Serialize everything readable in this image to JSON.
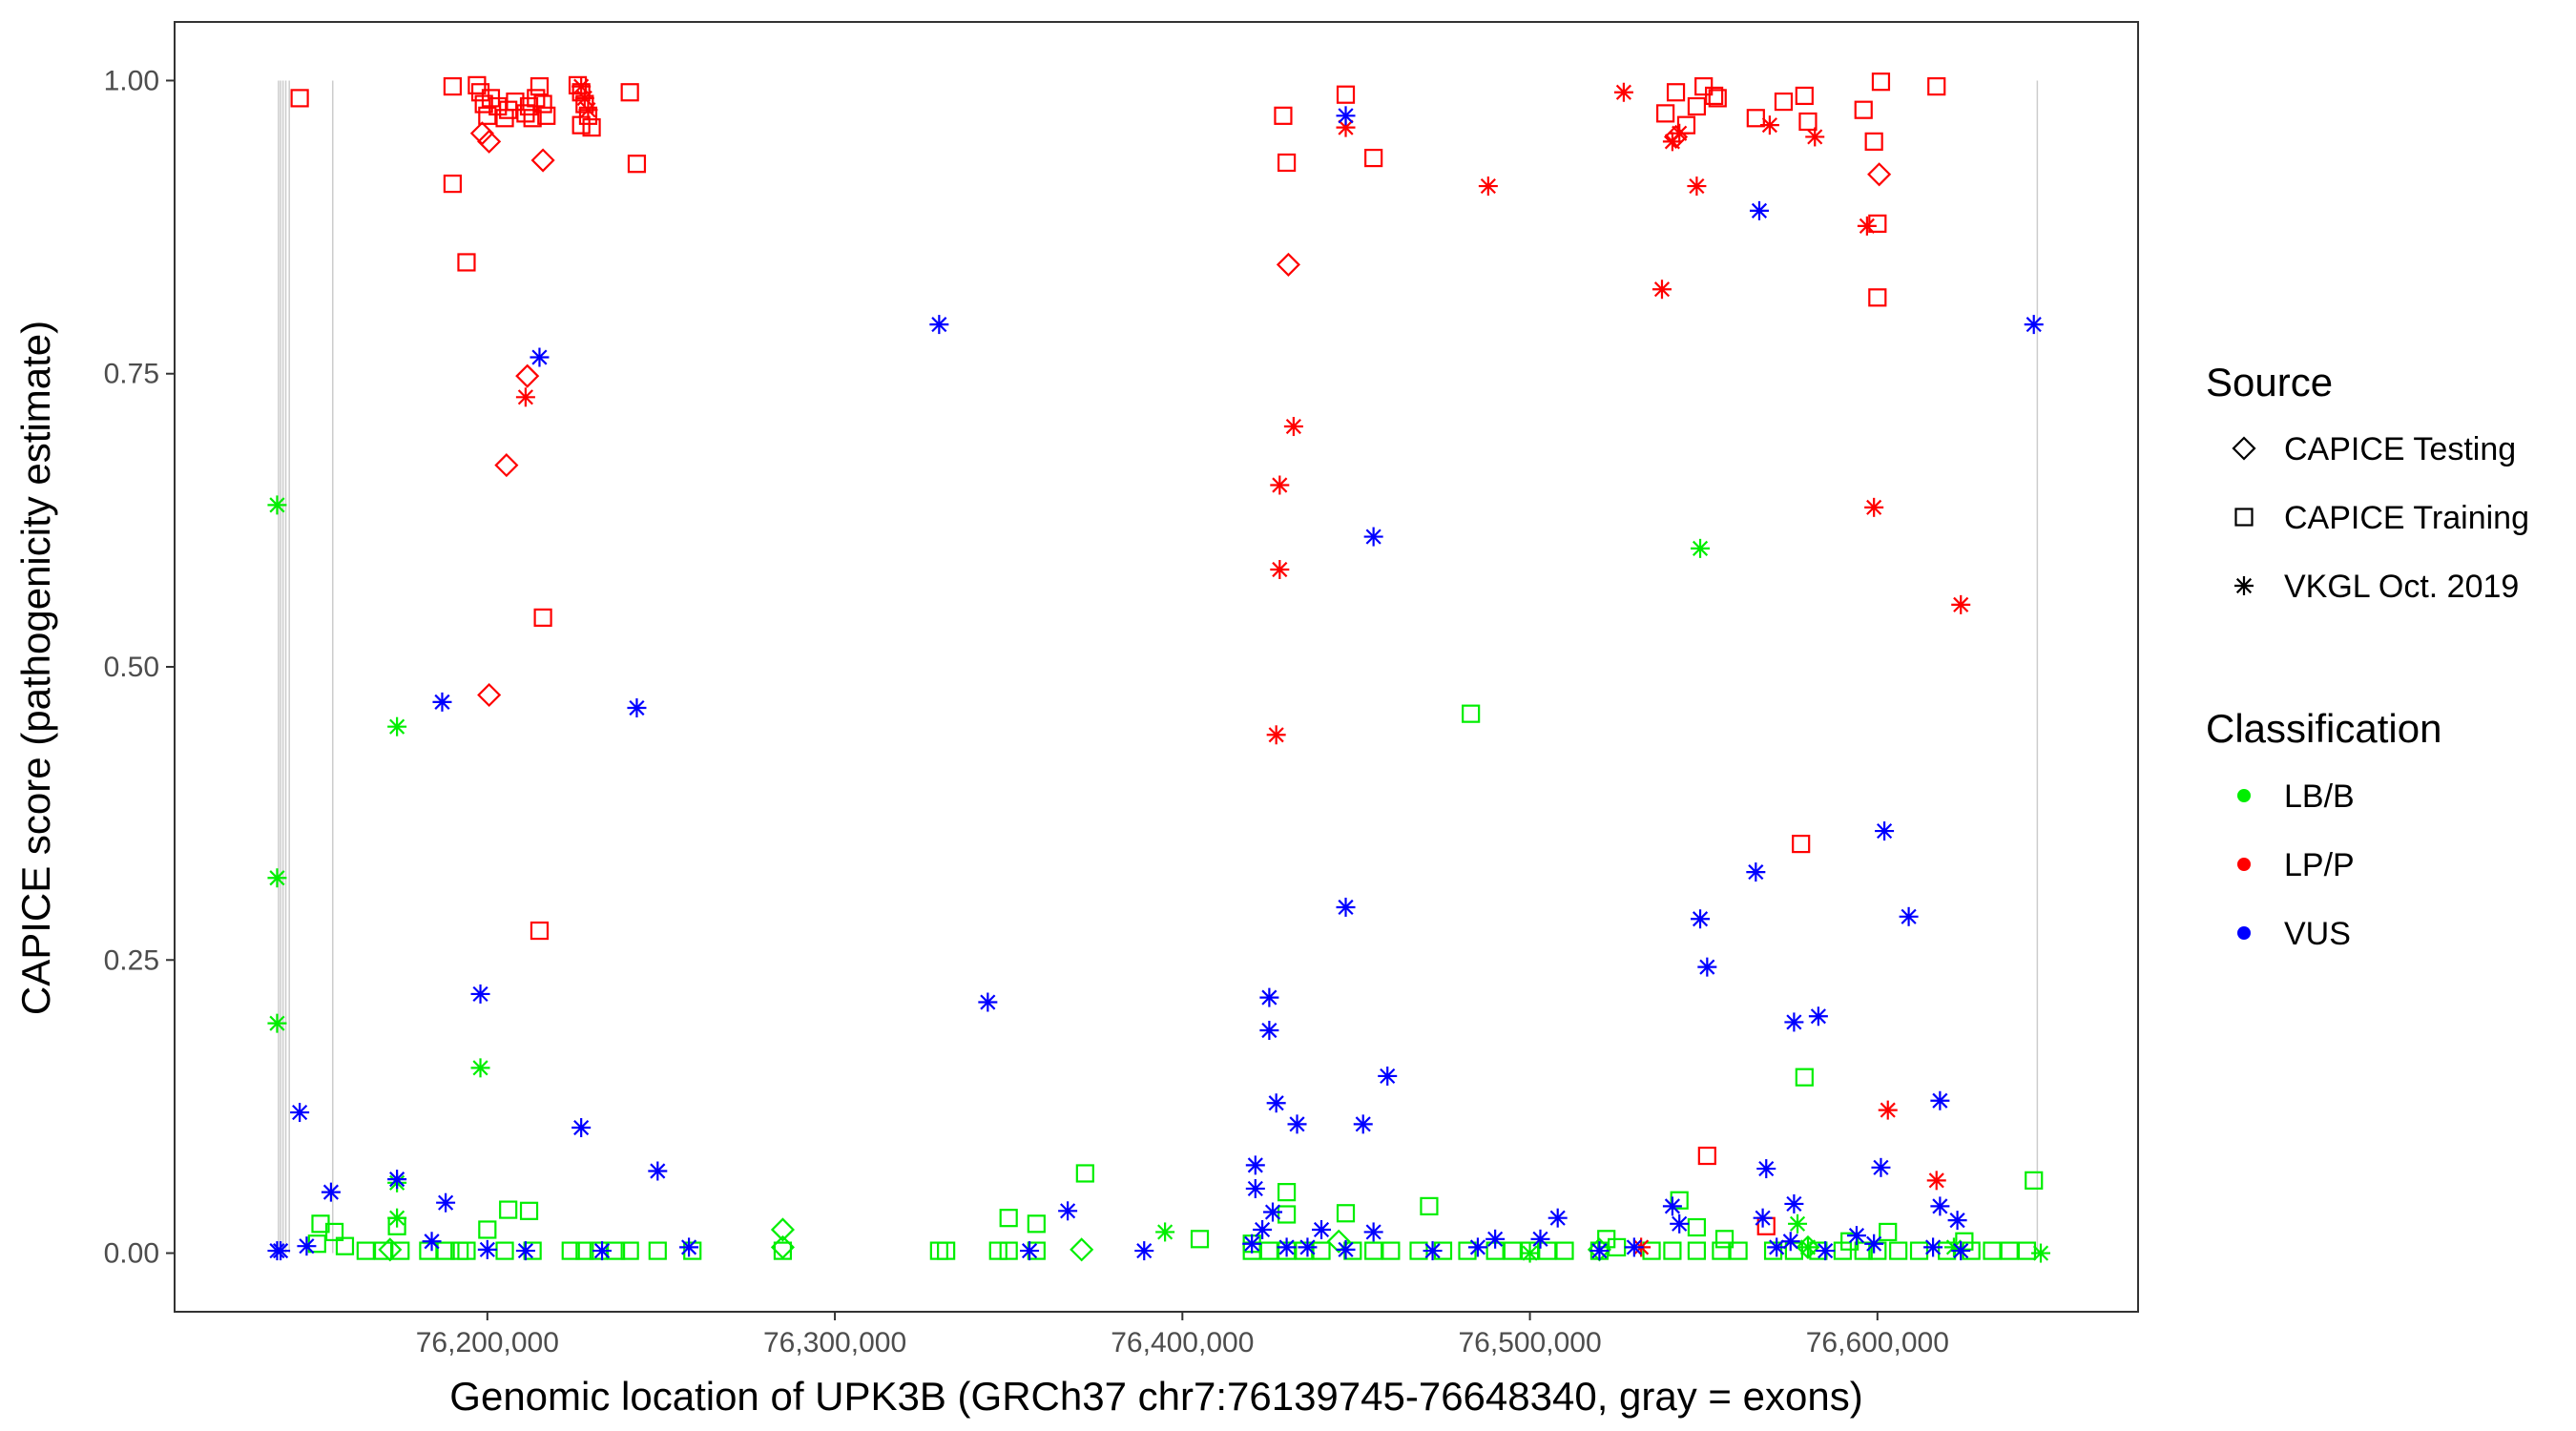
{
  "chart_data": {
    "type": "scatter",
    "title": "",
    "xlabel": "Genomic location of UPK3B (GRCh37 chr7:76139745-76648340, gray = exons)",
    "ylabel": "CAPICE score (pathogenicity estimate)",
    "xlim": [
      76110000,
      76675000
    ],
    "ylim": [
      -0.05,
      1.05
    ],
    "x_ticks": [
      76200000,
      76300000,
      76400000,
      76500000,
      76600000
    ],
    "x_tick_labels": [
      "76,200,000",
      "76,300,000",
      "76,400,000",
      "76,500,000",
      "76,600,000"
    ],
    "y_ticks": [
      0.0,
      0.25,
      0.5,
      0.75,
      1.0
    ],
    "y_tick_labels": [
      "0.00",
      "0.25",
      "0.50",
      "0.75",
      "1.00"
    ],
    "exons": [
      76139900,
      76140500,
      76141200,
      76142000,
      76143000,
      76155500,
      76646000
    ],
    "legend": {
      "source_title": "Source",
      "sources": [
        {
          "key": "testing",
          "label": "CAPICE Testing"
        },
        {
          "key": "training",
          "label": "CAPICE Training"
        },
        {
          "key": "vkgl",
          "label": "VKGL Oct. 2019"
        }
      ],
      "class_title": "Classification",
      "classes": [
        {
          "key": "LB/B",
          "label": "LB/B",
          "color": "#00ee00"
        },
        {
          "key": "LP/P",
          "label": "LP/P",
          "color": "#ff0000"
        },
        {
          "key": "VUS",
          "label": "VUS",
          "color": "#0000ff"
        }
      ]
    },
    "series": [
      {
        "name": "CAPICE Testing / LP/P",
        "source": "testing",
        "class": "LP/P",
        "points": [
          [
            76198500,
            0.955
          ],
          [
            76200500,
            0.948
          ],
          [
            76216000,
            0.932
          ],
          [
            76211500,
            0.748
          ],
          [
            76205500,
            0.672
          ],
          [
            76200500,
            0.476
          ],
          [
            76430500,
            0.843
          ],
          [
            76542000,
            0.952
          ],
          [
            76600500,
            0.92
          ]
        ]
      },
      {
        "name": "CAPICE Testing / LB/B",
        "source": "testing",
        "class": "LB/B",
        "points": [
          [
            76285000,
            0.02
          ],
          [
            76285000,
            0.005
          ],
          [
            76371000,
            0.003
          ],
          [
            76172000,
            0.003
          ],
          [
            76445000,
            0.01
          ],
          [
            76520000,
            0.003
          ],
          [
            76580000,
            0.005
          ]
        ]
      },
      {
        "name": "CAPICE Training / LP/P",
        "source": "training",
        "class": "LP/P",
        "points": [
          [
            76146000,
            0.985
          ],
          [
            76190000,
            0.995
          ],
          [
            76197000,
            0.996
          ],
          [
            76198000,
            0.99
          ],
          [
            76199000,
            0.98
          ],
          [
            76200000,
            0.97
          ],
          [
            76201000,
            0.985
          ],
          [
            76203000,
            0.978
          ],
          [
            76205000,
            0.968
          ],
          [
            76206000,
            0.975
          ],
          [
            76208000,
            0.982
          ],
          [
            76211000,
            0.972
          ],
          [
            76212000,
            0.978
          ],
          [
            76213000,
            0.968
          ],
          [
            76214000,
            0.985
          ],
          [
            76215000,
            0.995
          ],
          [
            76216000,
            0.98
          ],
          [
            76217000,
            0.97
          ],
          [
            76226000,
            0.996
          ],
          [
            76227000,
            0.99
          ],
          [
            76228000,
            0.98
          ],
          [
            76229000,
            0.97
          ],
          [
            76230000,
            0.96
          ],
          [
            76227000,
            0.962
          ],
          [
            76241000,
            0.99
          ],
          [
            76243000,
            0.929
          ],
          [
            76190000,
            0.912
          ],
          [
            76194000,
            0.845
          ],
          [
            76216000,
            0.542
          ],
          [
            76215000,
            0.275
          ],
          [
            76429000,
            0.97
          ],
          [
            76430000,
            0.93
          ],
          [
            76447000,
            0.988
          ],
          [
            76455000,
            0.934
          ],
          [
            76539000,
            0.972
          ],
          [
            76542000,
            0.99
          ],
          [
            76545000,
            0.962
          ],
          [
            76548000,
            0.978
          ],
          [
            76550000,
            0.995
          ],
          [
            76553000,
            0.987
          ],
          [
            76554000,
            0.985
          ],
          [
            76565000,
            0.968
          ],
          [
            76573000,
            0.982
          ],
          [
            76579000,
            0.987
          ],
          [
            76580000,
            0.965
          ],
          [
            76596000,
            0.975
          ],
          [
            76599000,
            0.948
          ],
          [
            76601000,
            0.999
          ],
          [
            76600000,
            0.878
          ],
          [
            76600000,
            0.815
          ],
          [
            76617000,
            0.995
          ],
          [
            76578000,
            0.349
          ],
          [
            76551000,
            0.083
          ],
          [
            76568000,
            0.023
          ]
        ]
      },
      {
        "name": "CAPICE Training / LB/B",
        "source": "training",
        "class": "LB/B",
        "points": [
          [
            76483000,
            0.46
          ],
          [
            76579000,
            0.15
          ],
          [
            76372000,
            0.068
          ],
          [
            76645000,
            0.062
          ],
          [
            76430000,
            0.052
          ],
          [
            76543000,
            0.045
          ],
          [
            76471000,
            0.04
          ],
          [
            76206000,
            0.037
          ],
          [
            76212000,
            0.036
          ],
          [
            76350000,
            0.03
          ],
          [
            76447000,
            0.034
          ],
          [
            76430000,
            0.033
          ],
          [
            76152000,
            0.025
          ],
          [
            76358000,
            0.025
          ],
          [
            76174000,
            0.023
          ],
          [
            76548000,
            0.022
          ],
          [
            76603000,
            0.018
          ],
          [
            76200000,
            0.02
          ],
          [
            76156000,
            0.018
          ],
          [
            76405000,
            0.012
          ],
          [
            76420000,
            0.008
          ],
          [
            76151000,
            0.008
          ],
          [
            76159000,
            0.006
          ],
          [
            76165000,
            0.002
          ],
          [
            76170000,
            0.002
          ],
          [
            76175000,
            0.002
          ],
          [
            76183000,
            0.002
          ],
          [
            76188000,
            0.002
          ],
          [
            76192000,
            0.002
          ],
          [
            76194000,
            0.002
          ],
          [
            76205000,
            0.002
          ],
          [
            76213000,
            0.002
          ],
          [
            76224000,
            0.002
          ],
          [
            76228000,
            0.002
          ],
          [
            76232000,
            0.002
          ],
          [
            76237000,
            0.002
          ],
          [
            76241000,
            0.002
          ],
          [
            76249000,
            0.002
          ],
          [
            76259000,
            0.002
          ],
          [
            76285000,
            0.002
          ],
          [
            76330000,
            0.002
          ],
          [
            76332000,
            0.002
          ],
          [
            76347000,
            0.002
          ],
          [
            76350000,
            0.002
          ],
          [
            76358000,
            0.002
          ],
          [
            76420000,
            0.002
          ],
          [
            76425000,
            0.002
          ],
          [
            76430000,
            0.002
          ],
          [
            76435000,
            0.002
          ],
          [
            76440000,
            0.002
          ],
          [
            76449000,
            0.002
          ],
          [
            76455000,
            0.002
          ],
          [
            76460000,
            0.002
          ],
          [
            76468000,
            0.002
          ],
          [
            76475000,
            0.002
          ],
          [
            76482000,
            0.002
          ],
          [
            76490000,
            0.002
          ],
          [
            76495000,
            0.002
          ],
          [
            76500000,
            0.002
          ],
          [
            76505000,
            0.002
          ],
          [
            76510000,
            0.002
          ],
          [
            76520000,
            0.002
          ],
          [
            76525000,
            0.005
          ],
          [
            76535000,
            0.002
          ],
          [
            76541000,
            0.002
          ],
          [
            76548000,
            0.002
          ],
          [
            76555000,
            0.002
          ],
          [
            76560000,
            0.002
          ],
          [
            76570000,
            0.002
          ],
          [
            76576000,
            0.002
          ],
          [
            76583000,
            0.002
          ],
          [
            76590000,
            0.002
          ],
          [
            76596000,
            0.002
          ],
          [
            76600000,
            0.002
          ],
          [
            76606000,
            0.002
          ],
          [
            76612000,
            0.002
          ],
          [
            76620000,
            0.002
          ],
          [
            76627000,
            0.002
          ],
          [
            76633000,
            0.002
          ],
          [
            76638000,
            0.002
          ],
          [
            76643000,
            0.002
          ],
          [
            76522000,
            0.012
          ],
          [
            76556000,
            0.012
          ],
          [
            76592000,
            0.01
          ],
          [
            76625000,
            0.01
          ]
        ]
      },
      {
        "name": "VKGL Oct. 2019 / LP/P",
        "source": "vkgl",
        "class": "LP/P",
        "points": [
          [
            76227000,
            0.995
          ],
          [
            76228000,
            0.985
          ],
          [
            76229000,
            0.975
          ],
          [
            76211000,
            0.73
          ],
          [
            76447000,
            0.96
          ],
          [
            76488000,
            0.91
          ],
          [
            76432000,
            0.705
          ],
          [
            76428000,
            0.655
          ],
          [
            76428000,
            0.583
          ],
          [
            76427000,
            0.442
          ],
          [
            76527000,
            0.99
          ],
          [
            76543000,
            0.955
          ],
          [
            76541000,
            0.948
          ],
          [
            76548000,
            0.91
          ],
          [
            76538000,
            0.822
          ],
          [
            76569000,
            0.962
          ],
          [
            76582000,
            0.952
          ],
          [
            76597000,
            0.876
          ],
          [
            76599000,
            0.636
          ],
          [
            76624000,
            0.553
          ],
          [
            76603000,
            0.122
          ],
          [
            76617000,
            0.062
          ],
          [
            76532000,
            0.005
          ]
        ]
      },
      {
        "name": "VKGL Oct. 2019 / LB/B",
        "source": "vkgl",
        "class": "LB/B",
        "points": [
          [
            76139500,
            0.638
          ],
          [
            76139500,
            0.32
          ],
          [
            76139500,
            0.196
          ],
          [
            76174000,
            0.449
          ],
          [
            76198000,
            0.158
          ],
          [
            76174000,
            0.03
          ],
          [
            76174000,
            0.06
          ],
          [
            76549000,
            0.601
          ],
          [
            76395000,
            0.018
          ],
          [
            76577000,
            0.025
          ],
          [
            76647000,
            0.0
          ],
          [
            76622000,
            0.005
          ],
          [
            76580000,
            0.005
          ],
          [
            76500000,
            0.0
          ]
        ]
      },
      {
        "name": "VKGL Oct. 2019 / VUS",
        "source": "vkgl",
        "class": "VUS",
        "points": [
          [
            76330000,
            0.792
          ],
          [
            76215000,
            0.764
          ],
          [
            76187000,
            0.47
          ],
          [
            76243000,
            0.465
          ],
          [
            76198000,
            0.221
          ],
          [
            76146000,
            0.12
          ],
          [
            76227000,
            0.107
          ],
          [
            76249000,
            0.07
          ],
          [
            76174000,
            0.063
          ],
          [
            76155000,
            0.052
          ],
          [
            76188000,
            0.043
          ],
          [
            76184000,
            0.01
          ],
          [
            76200000,
            0.003
          ],
          [
            76139500,
            0.002
          ],
          [
            76140500,
            0.002
          ],
          [
            76148000,
            0.006
          ],
          [
            76211000,
            0.002
          ],
          [
            76233000,
            0.002
          ],
          [
            76258000,
            0.005
          ],
          [
            76344000,
            0.214
          ],
          [
            76367000,
            0.036
          ],
          [
            76356000,
            0.002
          ],
          [
            76389000,
            0.002
          ],
          [
            76447000,
            0.97
          ],
          [
            76645000,
            0.792
          ],
          [
            76566000,
            0.889
          ],
          [
            76455000,
            0.611
          ],
          [
            76447000,
            0.295
          ],
          [
            76425000,
            0.218
          ],
          [
            76425000,
            0.19
          ],
          [
            76459000,
            0.151
          ],
          [
            76427000,
            0.128
          ],
          [
            76433000,
            0.11
          ],
          [
            76452000,
            0.11
          ],
          [
            76421000,
            0.075
          ],
          [
            76421000,
            0.055
          ],
          [
            76426000,
            0.035
          ],
          [
            76423000,
            0.02
          ],
          [
            76440000,
            0.02
          ],
          [
            76455000,
            0.018
          ],
          [
            76420000,
            0.008
          ],
          [
            76430000,
            0.005
          ],
          [
            76436000,
            0.005
          ],
          [
            76447000,
            0.003
          ],
          [
            76472000,
            0.002
          ],
          [
            76485000,
            0.005
          ],
          [
            76490000,
            0.012
          ],
          [
            76503000,
            0.012
          ],
          [
            76508000,
            0.03
          ],
          [
            76520000,
            0.002
          ],
          [
            76530000,
            0.005
          ],
          [
            76541000,
            0.04
          ],
          [
            76543000,
            0.025
          ],
          [
            76549000,
            0.285
          ],
          [
            76551000,
            0.244
          ],
          [
            76565000,
            0.325
          ],
          [
            76576000,
            0.197
          ],
          [
            76583000,
            0.202
          ],
          [
            76568000,
            0.072
          ],
          [
            76576000,
            0.042
          ],
          [
            76567000,
            0.03
          ],
          [
            76575000,
            0.01
          ],
          [
            76585000,
            0.002
          ],
          [
            76602000,
            0.36
          ],
          [
            76609000,
            0.287
          ],
          [
            76618000,
            0.13
          ],
          [
            76601000,
            0.073
          ],
          [
            76618000,
            0.04
          ],
          [
            76623000,
            0.028
          ],
          [
            76594000,
            0.015
          ],
          [
            76599000,
            0.008
          ],
          [
            76616000,
            0.005
          ],
          [
            76624000,
            0.002
          ],
          [
            76571000,
            0.005
          ]
        ]
      }
    ]
  }
}
